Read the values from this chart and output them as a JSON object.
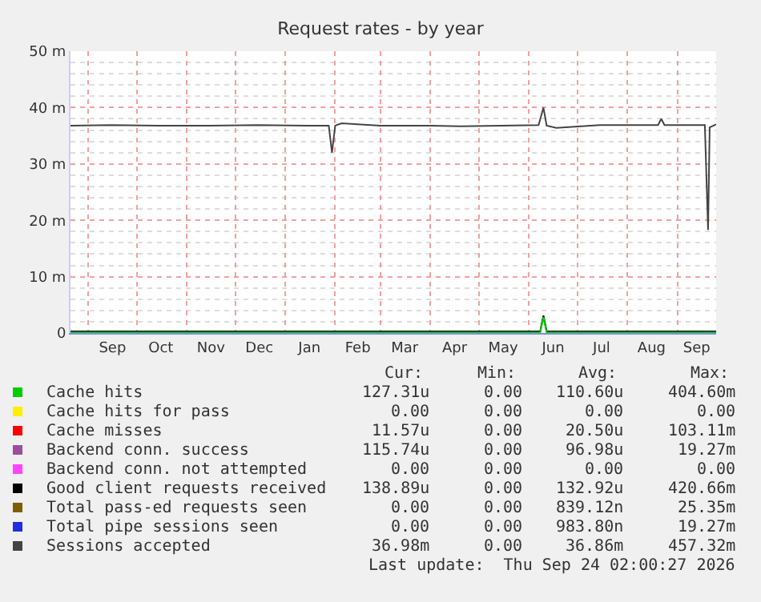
{
  "chart_data": {
    "type": "line",
    "title": "Request rates - by year",
    "xlim": [
      "2025-08-21",
      "2026-09-25"
    ],
    "xticks": [
      {
        "value": "2025-09-01",
        "label": null
      },
      {
        "value": "2025-09-16",
        "label": "Sep"
      },
      {
        "value": "2025-10-01",
        "label": null
      },
      {
        "value": "2025-10-16",
        "label": "Oct"
      },
      {
        "value": "2025-11-01",
        "label": null
      },
      {
        "value": "2025-11-16",
        "label": "Nov"
      },
      {
        "value": "2025-12-01",
        "label": null
      },
      {
        "value": "2025-12-16",
        "label": "Dec"
      },
      {
        "value": "2026-01-01",
        "label": null
      },
      {
        "value": "2026-01-16",
        "label": "Jan"
      },
      {
        "value": "2026-02-01",
        "label": null
      },
      {
        "value": "2026-02-15",
        "label": "Feb"
      },
      {
        "value": "2026-03-01",
        "label": null
      },
      {
        "value": "2026-03-16",
        "label": "Mar"
      },
      {
        "value": "2026-04-01",
        "label": null
      },
      {
        "value": "2026-04-16",
        "label": "Apr"
      },
      {
        "value": "2026-05-01",
        "label": null
      },
      {
        "value": "2026-05-16",
        "label": "May"
      },
      {
        "value": "2026-06-01",
        "label": null
      },
      {
        "value": "2026-06-16",
        "label": "Jun"
      },
      {
        "value": "2026-07-01",
        "label": null
      },
      {
        "value": "2026-07-16",
        "label": "Jul"
      },
      {
        "value": "2026-08-01",
        "label": null
      },
      {
        "value": "2026-08-16",
        "label": "Aug"
      },
      {
        "value": "2026-09-01",
        "label": null
      },
      {
        "value": "2026-09-13",
        "label": "Sep"
      }
    ],
    "ylim": [
      0,
      50
    ],
    "yticks": [
      0,
      {
        "value": 10,
        "label": "10 m"
      },
      {
        "value": 20,
        "label": "20 m"
      },
      {
        "value": 30,
        "label": "30 m"
      },
      {
        "value": 40,
        "label": "40 m"
      },
      {
        "value": 50,
        "label": "50 m"
      }
    ],
    "grid": true,
    "legend": "bottom",
    "marker": "none",
    "line_style": "solid",
    "series": [
      {
        "name": "Cache hits",
        "color": "#00cc00",
        "x": [
          "2025-08-21",
          "2026-06-08",
          "2026-06-10",
          "2026-06-12",
          "2026-09-25"
        ],
        "values": [
          0.1,
          0.1,
          2.8,
          0.1,
          0.1
        ]
      },
      {
        "name": "Cache hits for pass",
        "color": "#ffee00"
      },
      {
        "name": "Cache misses",
        "color": "#ff0000"
      },
      {
        "name": "Backend conn. success",
        "color": "#9e4d9e"
      },
      {
        "name": "Backend conn. not attempted",
        "color": "#ff44ff"
      },
      {
        "name": "Good client requests received",
        "color": "#000000",
        "x": [
          "2025-08-21",
          "2026-06-08",
          "2026-06-10",
          "2026-06-12",
          "2026-09-25"
        ],
        "values": [
          0.3,
          0.3,
          3.1,
          0.3,
          0.3
        ]
      },
      {
        "name": "Total pass-ed requests seen",
        "color": "#7f5f00"
      },
      {
        "name": "Total pipe sessions seen",
        "color": "#1f2fe0"
      },
      {
        "name": "Sessions accepted",
        "color": "#444444",
        "x": [
          "2025-08-21",
          "2025-09-15",
          "2025-10-15",
          "2025-11-15",
          "2025-12-15",
          "2026-01-15",
          "2026-01-28",
          "2026-01-30",
          "2026-02-01",
          "2026-02-05",
          "2026-03-01",
          "2026-04-01",
          "2026-04-20",
          "2026-05-15",
          "2026-06-07",
          "2026-06-10",
          "2026-06-12",
          "2026-06-18",
          "2026-07-15",
          "2026-08-20",
          "2026-08-22",
          "2026-08-24",
          "2026-09-15",
          "2026-09-18",
          "2026-09-20",
          "2026-09-21",
          "2026-09-25"
        ],
        "values": [
          36.8,
          36.9,
          36.8,
          36.8,
          36.9,
          36.8,
          36.8,
          32,
          36.8,
          37.2,
          36.8,
          36.8,
          36.7,
          36.8,
          36.9,
          40,
          36.8,
          36.4,
          36.9,
          36.9,
          38,
          36.9,
          36.9,
          36.9,
          18.3,
          36.5,
          37
        ]
      }
    ],
    "annotations": [
      "Cur:",
      "Min:",
      "Avg:",
      "Max:",
      "127.31u",
      "0.00",
      "110.60u",
      "404.60m",
      "0.00",
      "0.00",
      "0.00",
      "0.00",
      "11.57u",
      "0.00",
      "20.50u",
      "103.11m",
      "115.74u",
      "0.00",
      "96.98u",
      "19.27m",
      "0.00",
      "0.00",
      "0.00",
      "0.00",
      "138.89u",
      "0.00",
      "132.92u",
      "420.66m",
      "0.00",
      "0.00",
      "839.12n",
      "25.35m",
      "0.00",
      "0.00",
      "983.80n",
      "19.27m",
      "36.98m",
      "0.00",
      "36.86m",
      "457.32m",
      "Last update:  Thu Sep 24 02:00:27 2026"
    ]
  }
}
